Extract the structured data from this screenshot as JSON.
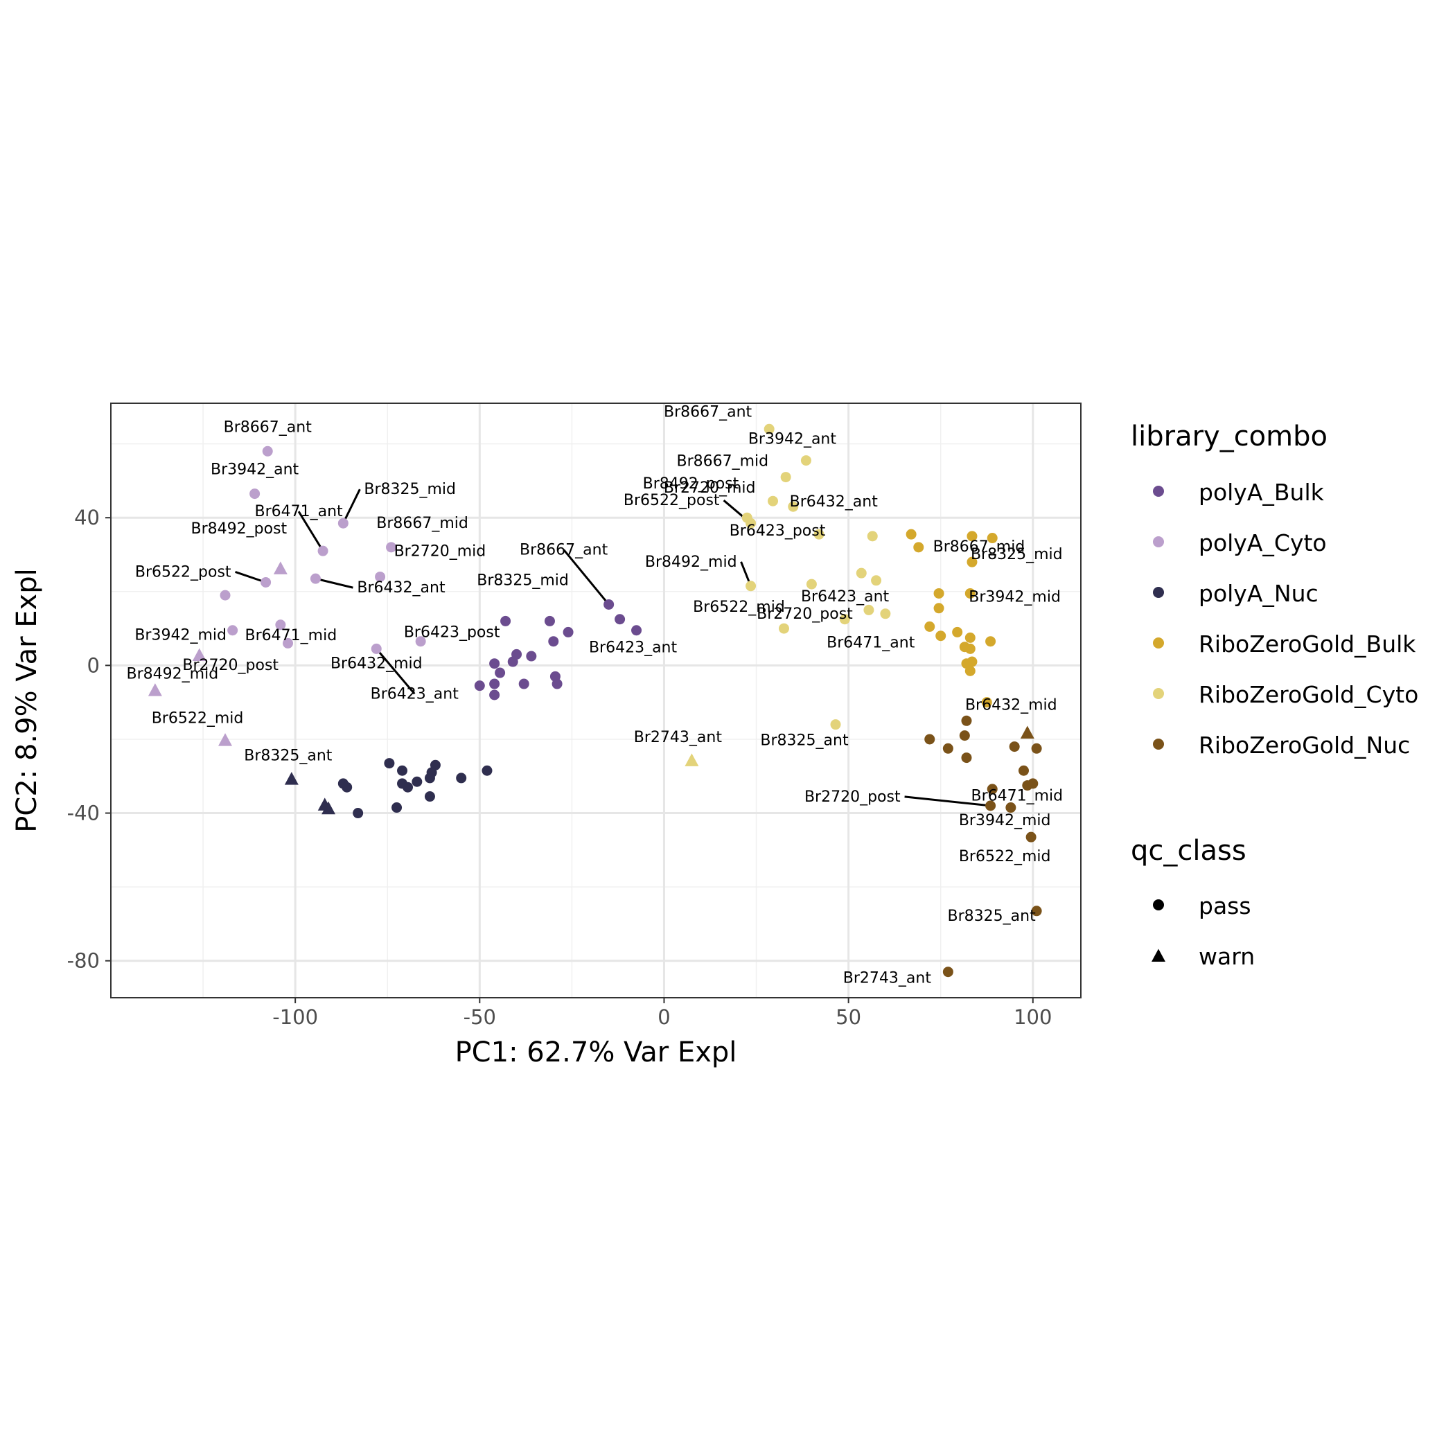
{
  "chart_data": {
    "type": "scatter",
    "xlabel": "PC1: 62.7% Var Expl",
    "ylabel": "PC2: 8.9% Var Expl",
    "xlim": [
      -150,
      113
    ],
    "ylim": [
      -90,
      71
    ],
    "x_ticks": [
      -100,
      -50,
      0,
      50,
      100
    ],
    "y_ticks": [
      40,
      0,
      -40,
      -80
    ],
    "x_tick_labels": [
      "-100",
      "-50",
      "0",
      "50",
      "100"
    ],
    "y_tick_labels": [
      "40",
      "0",
      "-40",
      "-80"
    ],
    "grid": true,
    "legend_position": "right",
    "legends": {
      "color": {
        "title": "library_combo",
        "entries": [
          {
            "name": "polyA_Bulk",
            "color": "#6b4c8f"
          },
          {
            "name": "polyA_Cyto",
            "color": "#bb9fcc"
          },
          {
            "name": "polyA_Nuc",
            "color": "#2f2e4f"
          },
          {
            "name": "RiboZeroGold_Bulk",
            "color": "#d4a82c"
          },
          {
            "name": "RiboZeroGold_Cyto",
            "color": "#e3d37a"
          },
          {
            "name": "RiboZeroGold_Nuc",
            "color": "#7a5219"
          }
        ]
      },
      "shape": {
        "title": "qc_class",
        "entries": [
          {
            "name": "pass",
            "shape": "circle"
          },
          {
            "name": "warn",
            "shape": "triangle"
          }
        ]
      }
    },
    "series": [
      {
        "name": "polyA_Bulk",
        "points": [
          {
            "x": -15,
            "y": 16.5,
            "shape": "circle"
          },
          {
            "x": -12,
            "y": 12.5,
            "shape": "circle"
          },
          {
            "x": -7.5,
            "y": 9.5,
            "shape": "circle"
          },
          {
            "x": -26,
            "y": 9,
            "shape": "circle"
          },
          {
            "x": -31,
            "y": 12,
            "shape": "circle"
          },
          {
            "x": -43,
            "y": 12,
            "shape": "circle"
          },
          {
            "x": -30,
            "y": 6.5,
            "shape": "circle"
          },
          {
            "x": -36,
            "y": 2.5,
            "shape": "circle"
          },
          {
            "x": -40,
            "y": 3,
            "shape": "circle"
          },
          {
            "x": -41,
            "y": 1,
            "shape": "circle"
          },
          {
            "x": -46,
            "y": 0.5,
            "shape": "circle"
          },
          {
            "x": -44.5,
            "y": -2,
            "shape": "circle"
          },
          {
            "x": -50,
            "y": -5.5,
            "shape": "circle"
          },
          {
            "x": -46,
            "y": -5,
            "shape": "circle"
          },
          {
            "x": -46,
            "y": -8,
            "shape": "circle"
          },
          {
            "x": -38,
            "y": -5,
            "shape": "circle"
          },
          {
            "x": -29.5,
            "y": -3,
            "shape": "circle"
          },
          {
            "x": -29,
            "y": -5,
            "shape": "circle"
          }
        ]
      },
      {
        "name": "polyA_Cyto",
        "points": [
          {
            "x": -107.5,
            "y": 58,
            "shape": "circle"
          },
          {
            "x": -111,
            "y": 46.5,
            "shape": "circle"
          },
          {
            "x": -87,
            "y": 38.5,
            "shape": "circle"
          },
          {
            "x": -92.5,
            "y": 31,
            "shape": "circle"
          },
          {
            "x": -74,
            "y": 32,
            "shape": "circle"
          },
          {
            "x": -108,
            "y": 22.5,
            "shape": "circle"
          },
          {
            "x": -94.5,
            "y": 23.5,
            "shape": "circle"
          },
          {
            "x": -77,
            "y": 24,
            "shape": "circle"
          },
          {
            "x": -119,
            "y": 19,
            "shape": "circle"
          },
          {
            "x": -104,
            "y": 11,
            "shape": "circle"
          },
          {
            "x": -117,
            "y": 9.5,
            "shape": "circle"
          },
          {
            "x": -102,
            "y": 6,
            "shape": "circle"
          },
          {
            "x": -78,
            "y": 4.5,
            "shape": "circle"
          },
          {
            "x": -66,
            "y": 6.5,
            "shape": "circle"
          },
          {
            "x": -104,
            "y": 26,
            "shape": "triangle"
          },
          {
            "x": -126,
            "y": 2.5,
            "shape": "triangle"
          },
          {
            "x": -138,
            "y": -7,
            "shape": "triangle"
          },
          {
            "x": -119,
            "y": -20.5,
            "shape": "triangle"
          }
        ]
      },
      {
        "name": "polyA_Nuc",
        "points": [
          {
            "x": -74.5,
            "y": -26.5,
            "shape": "circle"
          },
          {
            "x": -71,
            "y": -28.5,
            "shape": "circle"
          },
          {
            "x": -62,
            "y": -27,
            "shape": "circle"
          },
          {
            "x": -63,
            "y": -29,
            "shape": "circle"
          },
          {
            "x": -48,
            "y": -28.5,
            "shape": "circle"
          },
          {
            "x": -55,
            "y": -30.5,
            "shape": "circle"
          },
          {
            "x": -63.5,
            "y": -30.5,
            "shape": "circle"
          },
          {
            "x": -67,
            "y": -31.5,
            "shape": "circle"
          },
          {
            "x": -71,
            "y": -32,
            "shape": "circle"
          },
          {
            "x": -69.5,
            "y": -33,
            "shape": "circle"
          },
          {
            "x": -87,
            "y": -32,
            "shape": "circle"
          },
          {
            "x": -86,
            "y": -33,
            "shape": "circle"
          },
          {
            "x": -63.5,
            "y": -35.5,
            "shape": "circle"
          },
          {
            "x": -72.5,
            "y": -38.5,
            "shape": "circle"
          },
          {
            "x": -83,
            "y": -40,
            "shape": "circle"
          },
          {
            "x": -101,
            "y": -31,
            "shape": "triangle"
          },
          {
            "x": -92,
            "y": -38,
            "shape": "triangle"
          },
          {
            "x": -91,
            "y": -39,
            "shape": "triangle"
          }
        ]
      },
      {
        "name": "RiboZeroGold_Bulk",
        "points": [
          {
            "x": 67,
            "y": 35.5,
            "shape": "circle"
          },
          {
            "x": 83.5,
            "y": 35,
            "shape": "circle"
          },
          {
            "x": 89,
            "y": 34.5,
            "shape": "circle"
          },
          {
            "x": 69,
            "y": 32,
            "shape": "circle"
          },
          {
            "x": 83.5,
            "y": 28,
            "shape": "circle"
          },
          {
            "x": 83,
            "y": 19.5,
            "shape": "circle"
          },
          {
            "x": 74.5,
            "y": 19.5,
            "shape": "circle"
          },
          {
            "x": 74.5,
            "y": 15.5,
            "shape": "circle"
          },
          {
            "x": 72,
            "y": 10.5,
            "shape": "circle"
          },
          {
            "x": 79.5,
            "y": 9,
            "shape": "circle"
          },
          {
            "x": 75,
            "y": 8,
            "shape": "circle"
          },
          {
            "x": 83,
            "y": 7.5,
            "shape": "circle"
          },
          {
            "x": 88.5,
            "y": 6.5,
            "shape": "circle"
          },
          {
            "x": 81.5,
            "y": 5,
            "shape": "circle"
          },
          {
            "x": 83,
            "y": 4.5,
            "shape": "circle"
          },
          {
            "x": 82,
            "y": 0.5,
            "shape": "circle"
          },
          {
            "x": 83.5,
            "y": 1,
            "shape": "circle"
          },
          {
            "x": 83,
            "y": -1.5,
            "shape": "circle"
          },
          {
            "x": 87.5,
            "y": -10,
            "shape": "circle"
          }
        ]
      },
      {
        "name": "RiboZeroGold_Cyto",
        "points": [
          {
            "x": 28.5,
            "y": 64,
            "shape": "circle"
          },
          {
            "x": 38.5,
            "y": 55.5,
            "shape": "circle"
          },
          {
            "x": 33,
            "y": 51,
            "shape": "circle"
          },
          {
            "x": 29.5,
            "y": 44.5,
            "shape": "circle"
          },
          {
            "x": 35,
            "y": 43,
            "shape": "circle"
          },
          {
            "x": 22.5,
            "y": 40,
            "shape": "circle"
          },
          {
            "x": 23.5,
            "y": 38.5,
            "shape": "circle"
          },
          {
            "x": 42,
            "y": 35.5,
            "shape": "circle"
          },
          {
            "x": 56.5,
            "y": 35,
            "shape": "circle"
          },
          {
            "x": 53.5,
            "y": 25,
            "shape": "circle"
          },
          {
            "x": 57.5,
            "y": 23,
            "shape": "circle"
          },
          {
            "x": 40,
            "y": 22,
            "shape": "circle"
          },
          {
            "x": 23.5,
            "y": 21.5,
            "shape": "circle"
          },
          {
            "x": 55.5,
            "y": 15,
            "shape": "circle"
          },
          {
            "x": 60,
            "y": 14,
            "shape": "circle"
          },
          {
            "x": 49,
            "y": 12.5,
            "shape": "circle"
          },
          {
            "x": 32.5,
            "y": 10,
            "shape": "circle"
          },
          {
            "x": 46.5,
            "y": -16,
            "shape": "circle"
          },
          {
            "x": 7.5,
            "y": -26,
            "shape": "triangle"
          }
        ]
      },
      {
        "name": "RiboZeroGold_Nuc",
        "points": [
          {
            "x": 82,
            "y": -15,
            "shape": "circle"
          },
          {
            "x": 72,
            "y": -20,
            "shape": "circle"
          },
          {
            "x": 81.5,
            "y": -19,
            "shape": "circle"
          },
          {
            "x": 77,
            "y": -22.5,
            "shape": "circle"
          },
          {
            "x": 95,
            "y": -22,
            "shape": "circle"
          },
          {
            "x": 101,
            "y": -22.5,
            "shape": "circle"
          },
          {
            "x": 82,
            "y": -25,
            "shape": "circle"
          },
          {
            "x": 97.5,
            "y": -28.5,
            "shape": "circle"
          },
          {
            "x": 100,
            "y": -32,
            "shape": "circle"
          },
          {
            "x": 98.5,
            "y": -32.5,
            "shape": "circle"
          },
          {
            "x": 89,
            "y": -33.5,
            "shape": "circle"
          },
          {
            "x": 88.5,
            "y": -38,
            "shape": "circle"
          },
          {
            "x": 94,
            "y": -38.5,
            "shape": "circle"
          },
          {
            "x": 99.5,
            "y": -46.5,
            "shape": "circle"
          },
          {
            "x": 101,
            "y": -66.5,
            "shape": "circle"
          },
          {
            "x": 77,
            "y": -83,
            "shape": "circle"
          },
          {
            "x": 98.5,
            "y": -18.5,
            "shape": "triangle"
          }
        ]
      }
    ],
    "annotations": [
      {
        "text": "Br8667_ant",
        "x": -107.5,
        "y": 58,
        "anchor": "middle"
      },
      {
        "text": "Br3942_ant",
        "x": -111,
        "y": 46.5,
        "anchor": "middle"
      },
      {
        "text": "Br8325_mid",
        "x": -87,
        "y": 38.5,
        "anchor": "start",
        "leader": true
      },
      {
        "text": "Br6471_ant",
        "x": -92.5,
        "y": 31,
        "anchor": "middle",
        "leader": true
      },
      {
        "text": "Br8667_mid",
        "x": -74,
        "y": 32,
        "anchor": "middle"
      },
      {
        "text": "Br8492_post",
        "x": -104,
        "y": 26,
        "anchor": "middle"
      },
      {
        "text": "Br6522_post",
        "x": -108,
        "y": 22.5,
        "anchor": "end",
        "leader": true
      },
      {
        "text": "Br2720_mid",
        "x": -77,
        "y": 24,
        "anchor": "start"
      },
      {
        "text": "Br6432_ant",
        "x": -94.5,
        "y": 23.5,
        "anchor": "start",
        "leader": true
      },
      {
        "text": "Br6471_mid",
        "x": -104,
        "y": 11,
        "anchor": "middle"
      },
      {
        "text": "Br3942_mid",
        "x": -117,
        "y": 9.5,
        "anchor": "middle"
      },
      {
        "text": "Br2720_post",
        "x": -126,
        "y": 2.5,
        "anchor": "middle"
      },
      {
        "text": "Br6432_mid",
        "x": -78,
        "y": 4.5,
        "anchor": "middle"
      },
      {
        "text": "Br6423_post",
        "x": -66,
        "y": 6.5,
        "anchor": "middle"
      },
      {
        "text": "Br6423_ant",
        "x": -78,
        "y": 4.5,
        "anchor": "middle",
        "leader": true
      },
      {
        "text": "Br8492_mid",
        "x": -138,
        "y": -7,
        "anchor": "middle"
      },
      {
        "text": "Br6522_mid",
        "x": -119,
        "y": -20.5,
        "anchor": "middle"
      },
      {
        "text": "Br8325_ant",
        "x": -101,
        "y": -31,
        "anchor": "middle"
      },
      {
        "text": "Br8667_ant",
        "x": -15,
        "y": 16.5,
        "anchor": "middle",
        "leader": true
      },
      {
        "text": "Br8325_mid",
        "x": -43,
        "y": 12,
        "anchor": "middle"
      },
      {
        "text": "Br6423_ant",
        "x": -7.5,
        "y": 9.5,
        "anchor": "middle"
      },
      {
        "text": "Br8667_ant",
        "x": 28.5,
        "y": 64,
        "anchor": "end"
      },
      {
        "text": "Br3942_ant",
        "x": 38.5,
        "y": 55.5,
        "anchor": "middle"
      },
      {
        "text": "Br8667_mid",
        "x": 33,
        "y": 51,
        "anchor": "end"
      },
      {
        "text": "Br2720_mid",
        "x": 29.5,
        "y": 44.5,
        "anchor": "end"
      },
      {
        "text": "Br8492_post",
        "x": 22.5,
        "y": 40,
        "anchor": "end"
      },
      {
        "text": "Br6522_post",
        "x": 23.5,
        "y": 38.5,
        "anchor": "end",
        "leader": true
      },
      {
        "text": "Br6432_ant",
        "x": 53.5,
        "y": 35.5,
        "anchor": "middle"
      },
      {
        "text": "Br6423_post",
        "x": 42,
        "y": 35.5,
        "anchor": "middle"
      },
      {
        "text": "Br8492_mid",
        "x": 23.5,
        "y": 21.5,
        "anchor": "end",
        "leader": true
      },
      {
        "text": "Br2720_post",
        "x": 32.5,
        "y": 10,
        "anchor": "middle"
      },
      {
        "text": "Br6423_ant",
        "x": 57.5,
        "y": 23,
        "anchor": "middle"
      },
      {
        "text": "Br6522_mid",
        "x": 32.5,
        "y": 10,
        "anchor": "middle"
      },
      {
        "text": "Br8325_ant",
        "x": 46.5,
        "y": -16,
        "anchor": "middle"
      },
      {
        "text": "Br2743_ant",
        "x": 7.5,
        "y": -26,
        "anchor": "middle"
      },
      {
        "text": "Br8667_mid",
        "x": 83.5,
        "y": 35,
        "anchor": "middle"
      },
      {
        "text": "Br8325_mid",
        "x": 83.5,
        "y": 28,
        "anchor": "start"
      },
      {
        "text": "Br3942_mid",
        "x": 83,
        "y": 19.5,
        "anchor": "start"
      },
      {
        "text": "Br6471_ant",
        "x": 72,
        "y": 10.5,
        "anchor": "middle"
      },
      {
        "text": "Br6432_mid",
        "x": 82,
        "y": -15,
        "anchor": "start"
      },
      {
        "text": "Br6471_mid",
        "x": 98.5,
        "y": -32.5,
        "anchor": "middle"
      },
      {
        "text": "Br2720_post",
        "x": 88.5,
        "y": -38,
        "anchor": "end",
        "leader": true
      },
      {
        "text": "Br3942_mid",
        "x": 99.5,
        "y": -46.5,
        "anchor": "middle"
      },
      {
        "text": "Br6522_mid",
        "x": 99.5,
        "y": -46.5,
        "anchor": "middle"
      },
      {
        "text": "Br8325_ant",
        "x": 101,
        "y": -66.5,
        "anchor": "middle"
      },
      {
        "text": "Br2743_ant",
        "x": 77,
        "y": -83,
        "anchor": "middle"
      }
    ]
  }
}
